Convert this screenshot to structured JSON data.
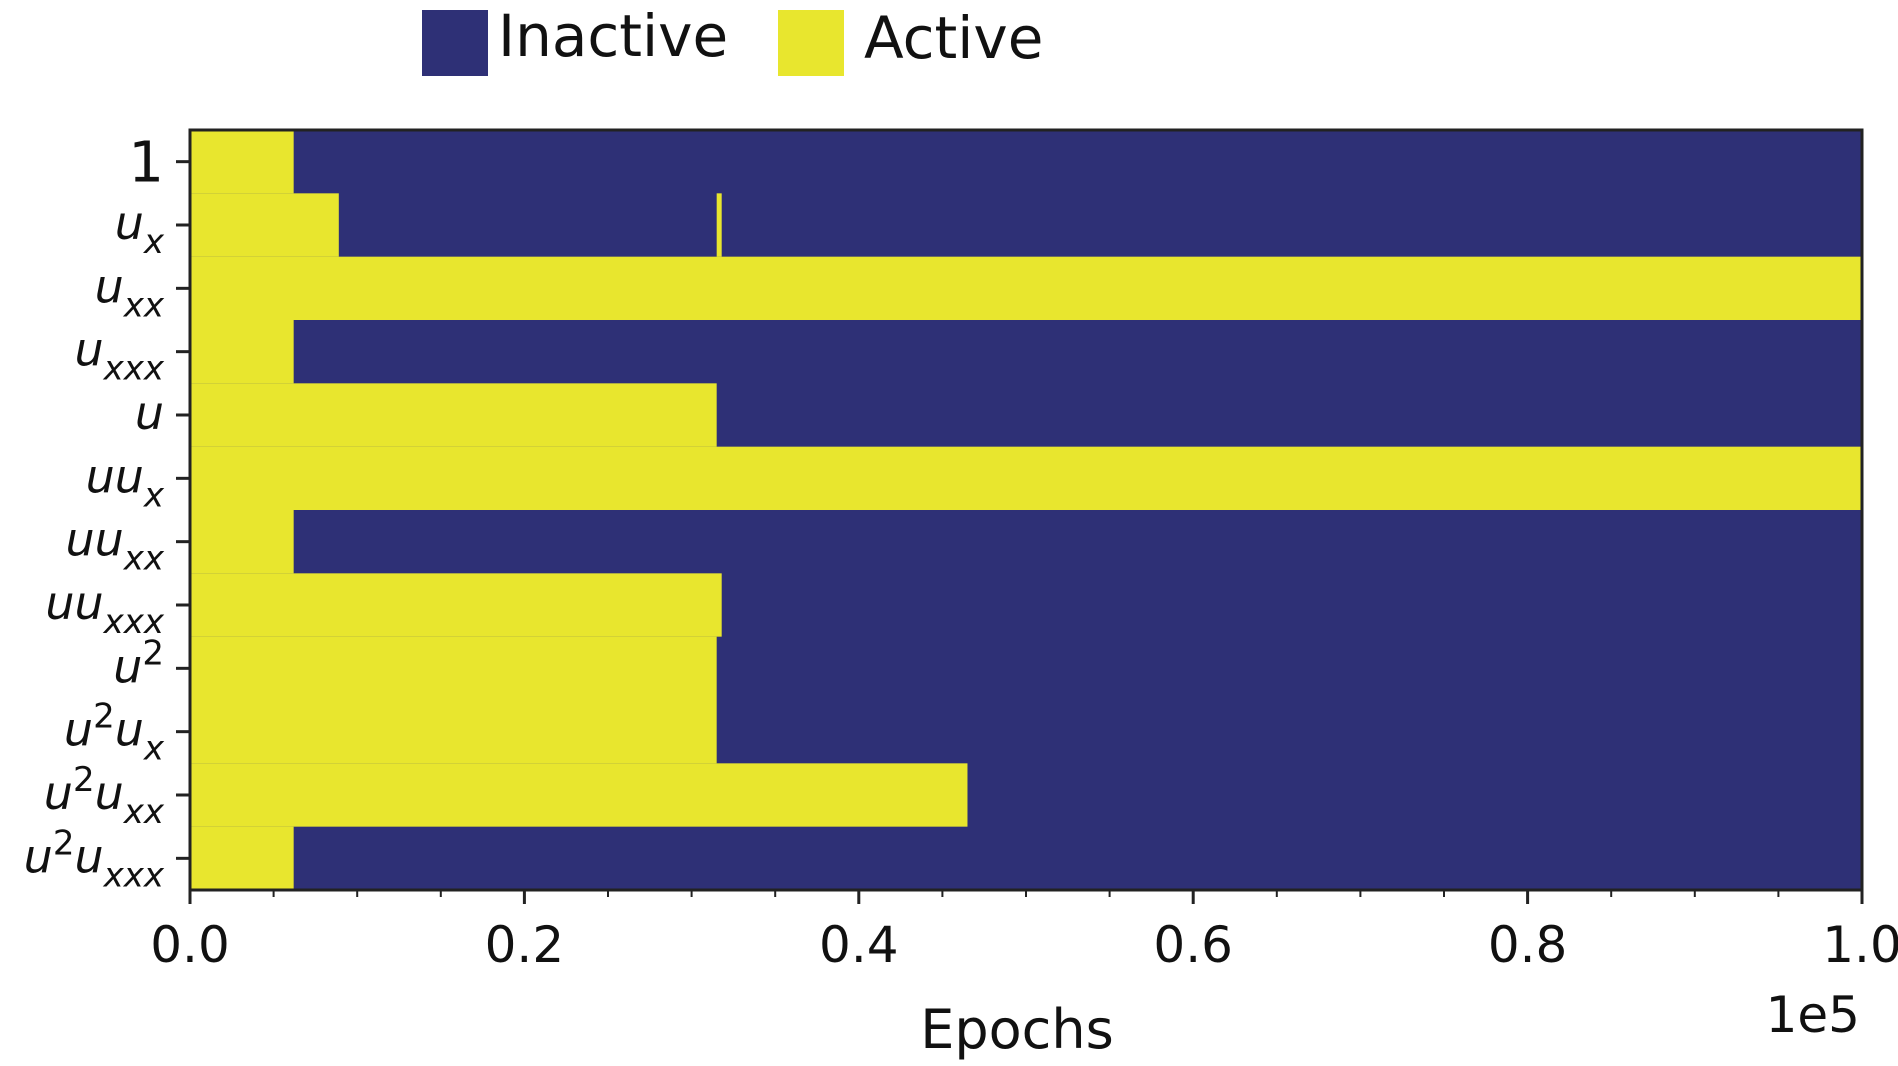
{
  "chart_data": {
    "type": "heatmap",
    "xlabel": "Epochs",
    "x_offset_label": "1e5",
    "xlim": [
      0,
      1.0
    ],
    "x_ticks": [
      "0.0",
      "0.2",
      "0.4",
      "0.6",
      "0.8",
      "1.0"
    ],
    "x_tick_values": [
      0.0,
      0.2,
      0.4,
      0.6,
      0.8,
      1.0
    ],
    "legend": {
      "placement": "top",
      "entries": [
        {
          "label": "Inactive",
          "color": "#2e3076"
        },
        {
          "label": "Active",
          "color": "#e8e62e"
        }
      ]
    },
    "colors": {
      "inactive": "#2e3076",
      "active": "#e8e62e"
    },
    "rows": [
      {
        "label": "1",
        "base": "1",
        "sub": "",
        "sup": "",
        "active_intervals": [
          [
            0.0,
            0.062
          ]
        ]
      },
      {
        "label": "u_x",
        "base": "u",
        "sub": "x",
        "sup": "",
        "active_intervals": [
          [
            0.0,
            0.089
          ],
          [
            0.315,
            0.318
          ]
        ]
      },
      {
        "label": "u_xx",
        "base": "u",
        "sub": "xx",
        "sup": "",
        "active_intervals": [
          [
            0.0,
            1.0
          ]
        ]
      },
      {
        "label": "u_xxx",
        "base": "u",
        "sub": "xxx",
        "sup": "",
        "active_intervals": [
          [
            0.0,
            0.062
          ]
        ]
      },
      {
        "label": "u",
        "base": "u",
        "sub": "",
        "sup": "",
        "active_intervals": [
          [
            0.0,
            0.315
          ]
        ]
      },
      {
        "label": "uu_x",
        "base": "uu",
        "sub": "x",
        "sup": "",
        "active_intervals": [
          [
            0.0,
            1.0
          ]
        ]
      },
      {
        "label": "uu_xx",
        "base": "uu",
        "sub": "xx",
        "sup": "",
        "active_intervals": [
          [
            0.0,
            0.062
          ]
        ]
      },
      {
        "label": "uu_xxx",
        "base": "uu",
        "sub": "xxx",
        "sup": "",
        "active_intervals": [
          [
            0.0,
            0.318
          ]
        ]
      },
      {
        "label": "u^2",
        "base": "u",
        "sub": "",
        "sup": "2",
        "active_intervals": [
          [
            0.0,
            0.315
          ]
        ]
      },
      {
        "label": "u^2u_x",
        "base": "u",
        "sub": "x",
        "sup": "2",
        "mid": "u",
        "active_intervals": [
          [
            0.0,
            0.315
          ]
        ]
      },
      {
        "label": "u^2u_xx",
        "base": "u",
        "sub": "xx",
        "sup": "2",
        "mid": "u",
        "active_intervals": [
          [
            0.0,
            0.465
          ]
        ]
      },
      {
        "label": "u^2u_xxx",
        "base": "u",
        "sub": "xxx",
        "sup": "2",
        "mid": "u",
        "active_intervals": [
          [
            0.0,
            0.062
          ]
        ]
      }
    ]
  }
}
